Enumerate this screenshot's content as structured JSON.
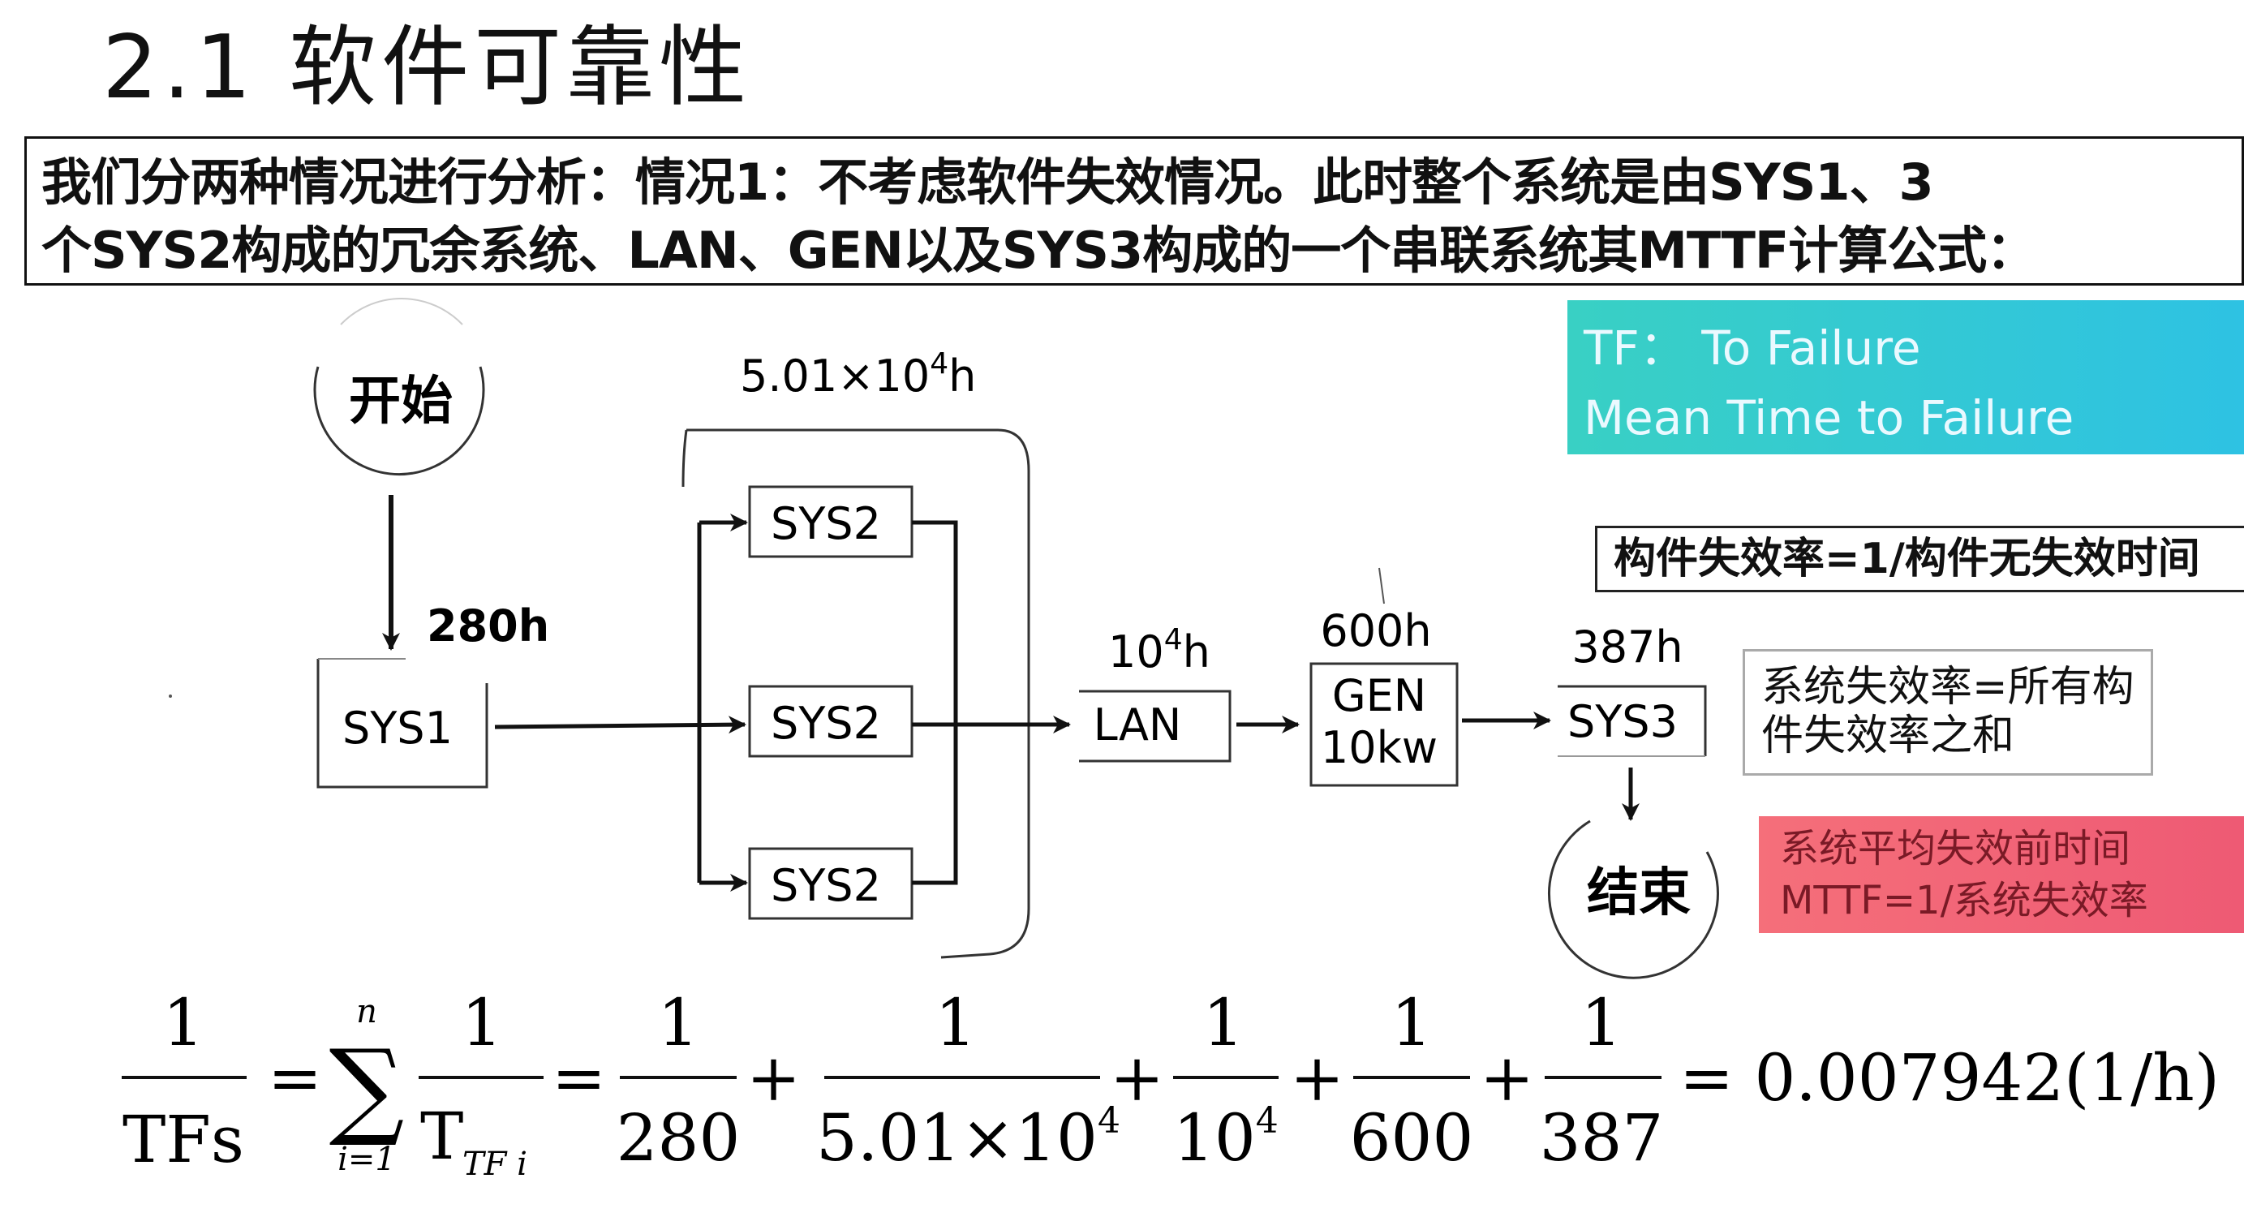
{
  "title": "2.1 软件可靠性",
  "intro": {
    "line1": "我们分两种情况进行分析：情况1：不考虑软件失效情况。此时整个系统是由SYS1、3",
    "line2": "个SYS2构成的冗余系统、LAN、GEN以及SYS3构成的一个串联系统其MTTF计算公式："
  },
  "flow": {
    "start": "开始",
    "end": "结束",
    "sys1": {
      "name": "SYS1",
      "time": "280h"
    },
    "sys2": {
      "name": "SYS2",
      "time_base": "5.01×10",
      "time_exp": "4",
      "time_unit": "h"
    },
    "lan": {
      "name": "LAN",
      "time_base": "10",
      "time_exp": "4",
      "time_unit": "h"
    },
    "gen": {
      "name": "GEN",
      "spec": "10kw",
      "time": "600h"
    },
    "sys3": {
      "name": "SYS3",
      "time": "387h"
    }
  },
  "legends": {
    "teal_line1": "TF：  To Failure",
    "teal_line2": "Mean Time to Failure",
    "component_rate": "构件失效率=1/构件无失效时间",
    "system_rate_line1": "系统失效率=所有构",
    "system_rate_line2": "件失效率之和",
    "mttf_line1": "系统平均失效前时间",
    "mttf_line2": "MTTF=1/系统失效率"
  },
  "colors": {
    "teal": "#34c8d4",
    "red": "#f0647a"
  },
  "formula": {
    "one": "1",
    "lhs_den": "TFs",
    "eq": "=",
    "sigma": "∑",
    "sum_upper": "n",
    "sum_lower": "i=1",
    "t_den": "T",
    "t_sub": "TF i",
    "plus": "+",
    "d1": "280",
    "d2_base": "5.01×10",
    "d2_exp": "4",
    "d3_base": "10",
    "d3_exp": "4",
    "d4": "600",
    "d5": "387",
    "result": "= 0.007942(1/h)"
  }
}
